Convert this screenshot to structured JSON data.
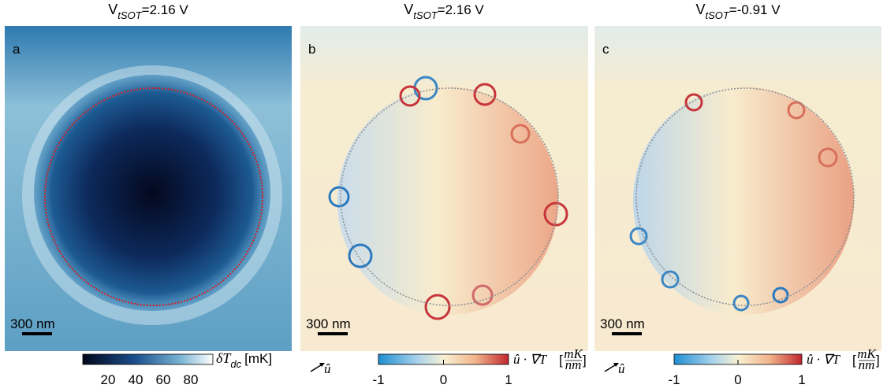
{
  "panels": [
    {
      "letter": "a",
      "title": {
        "symbol": "V",
        "subscript": "tSOT",
        "value": "=2.16 V"
      },
      "scale_bar": "300 nm",
      "colorbar": {
        "label": {
          "symbol": "δT",
          "subscript": "dc",
          "unit": "[mK]"
        },
        "ticks": [
          "20",
          "40",
          "60",
          "80"
        ]
      }
    },
    {
      "letter": "b",
      "title": {
        "symbol": "V",
        "subscript": "tSOT",
        "value": "=2.16 V"
      },
      "scale_bar": "300 nm",
      "direction": "û",
      "colorbar": {
        "label": {
          "expression": "û · ∇T",
          "numerator": "mK",
          "denominator": "nm"
        },
        "ticks": [
          "-1",
          "0",
          "1"
        ]
      }
    },
    {
      "letter": "c",
      "title": {
        "symbol": "V",
        "subscript": "tSOT",
        "value": "=-0.91 V"
      },
      "scale_bar": "300 nm",
      "direction": "û",
      "colorbar": {
        "label": {
          "expression": "û · ∇T",
          "numerator": "mK",
          "denominator": "nm"
        },
        "ticks": [
          "-1",
          "0",
          "1"
        ]
      }
    }
  ]
}
